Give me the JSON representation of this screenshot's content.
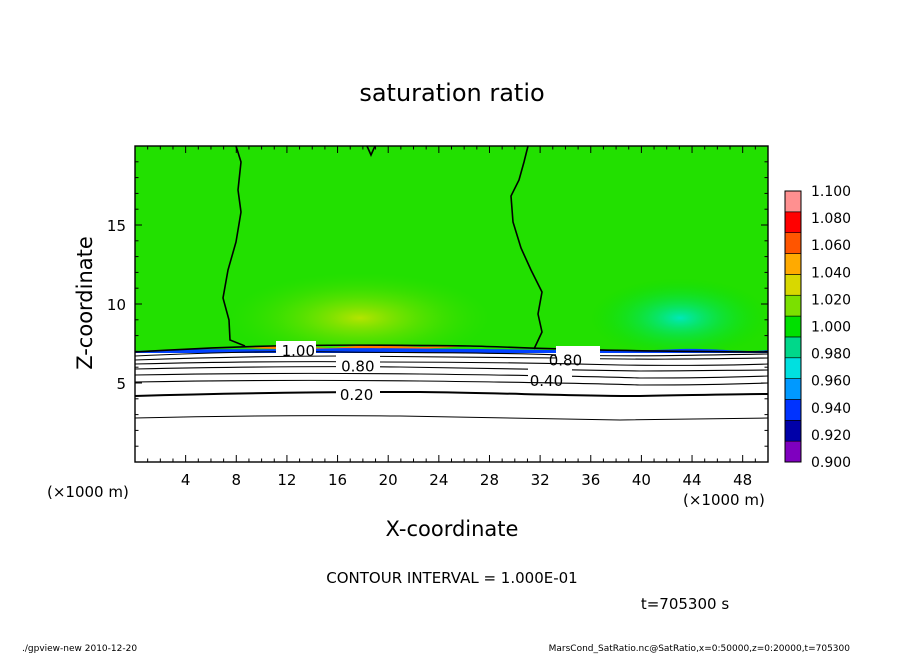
{
  "chart_data": {
    "type": "heatmap",
    "title": "saturation ratio",
    "xlabel": "X-coordinate",
    "ylabel": "Z-coordinate",
    "x_unit": "(×1000 m)",
    "y_unit": "(×1000 m)",
    "xlim": [
      0,
      50
    ],
    "ylim": [
      0,
      20
    ],
    "x_ticks": [
      4,
      8,
      12,
      16,
      20,
      24,
      28,
      32,
      36,
      40,
      44,
      48
    ],
    "y_ticks": [
      5,
      10,
      15
    ],
    "colorbar": {
      "levels": [
        "0.900",
        "0.920",
        "0.940",
        "0.960",
        "0.980",
        "1.000",
        "1.020",
        "1.040",
        "1.060",
        "1.080",
        "1.100"
      ],
      "colors": [
        "#7f00bf",
        "#0000a8",
        "#0033ff",
        "#0099ff",
        "#00e0e0",
        "#00d88a",
        "#00e000",
        "#7be000",
        "#d8d800",
        "#ffaa00",
        "#ff5500",
        "#ff0000",
        "#ff9090"
      ]
    },
    "contour_labels": [
      {
        "text": "1.00",
        "x": 12.9,
        "z": 7.1
      },
      {
        "text": "0.80",
        "x": 17.6,
        "z": 6.1
      },
      {
        "text": "0.80",
        "x": 34.0,
        "z": 6.5
      },
      {
        "text": "0.40",
        "x": 32.5,
        "z": 5.2
      },
      {
        "text": "0.20",
        "x": 17.5,
        "z": 4.3
      }
    ],
    "contour_interval": "CONTOUR INTERVAL = 1.000E-01",
    "time_label": "t=705300 s"
  },
  "footer": {
    "left": "./gpview-new   2010-12-20",
    "right": "MarsCond_SatRatio.nc@SatRatio,x=0:50000,z=0:20000,t=705300"
  }
}
